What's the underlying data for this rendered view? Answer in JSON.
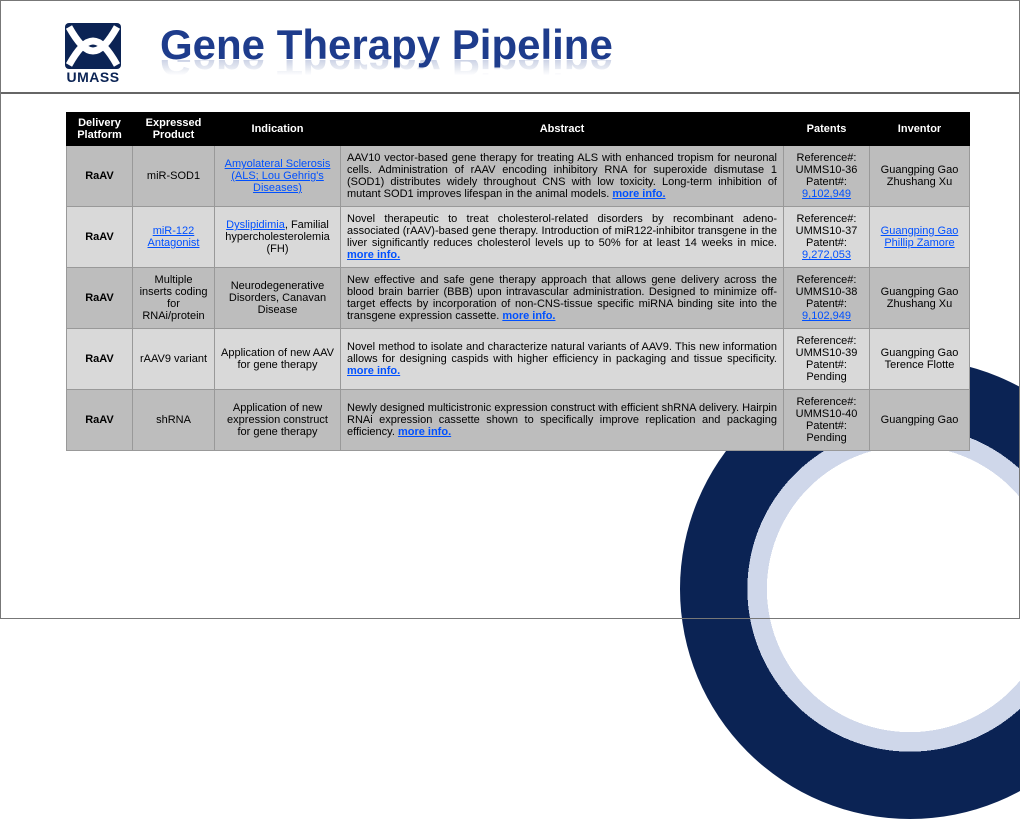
{
  "header": {
    "logo_text": "UMASS",
    "title": "Gene Therapy Pipeline"
  },
  "columns": [
    "Delivery Platform",
    "Expressed Product",
    "Indication",
    "Abstract",
    "Patents",
    "Inventor"
  ],
  "rows": [
    {
      "platform": "RaAV",
      "product": {
        "text": "miR-SOD1",
        "link": false
      },
      "indication": [
        {
          "t": "Amyolateral Sclerosis (ALS; Lou Gehrig's Diseases)",
          "link": true
        }
      ],
      "abstract_parts": [
        {
          "t": "AAV10 vector-based gene therapy for treating ALS with enhanced tropism for neuronal cells. Administration of rAAV encoding inhibitory RNA for superoxide dismutase 1 (SOD1) distributes widely throughout CNS with low toxicity. Long-term inhibition of mutant SOD1 improves lifespan in the animal models. "
        },
        {
          "t": "more info.",
          "more": true
        }
      ],
      "patents": [
        {
          "t": "Reference#: UMMS10-36"
        },
        {
          "t": "Patent#:"
        },
        {
          "t": "9,102,949",
          "link": true
        }
      ],
      "inventor": [
        {
          "t": "Guangping Gao"
        },
        {
          "t": "Zhushang Xu"
        }
      ]
    },
    {
      "platform": "RaAV",
      "product": {
        "text": "miR-122 Antagonist",
        "link": true
      },
      "indication": [
        {
          "t": "Dyslipidimia",
          "link": true
        },
        {
          "t": ", Familial hypercholesterolemia (FH)"
        }
      ],
      "abstract_parts": [
        {
          "t": "Novel therapeutic to treat cholesterol-related disorders by recombinant adeno-associated (rAAV)-based gene therapy. Introduction of miR122-inhibitor transgene in the liver significantly reduces cholesterol levels up to 50% for at least 14 weeks in mice. "
        },
        {
          "t": "more info.",
          "more": true
        }
      ],
      "patents": [
        {
          "t": "Reference#: UMMS10-37"
        },
        {
          "t": "Patent#:"
        },
        {
          "t": "9,272,053",
          "link": true
        }
      ],
      "inventor": [
        {
          "t": "Guangping Gao",
          "link": true
        },
        {
          "t": "Phillip Zamore",
          "link": true
        }
      ]
    },
    {
      "platform": "RaAV",
      "product": {
        "text": "Multiple inserts coding for RNAi/protein",
        "link": false
      },
      "indication": [
        {
          "t": "Neurodegenerative Disorders, Canavan Disease"
        }
      ],
      "abstract_parts": [
        {
          "t": "New effective and safe gene therapy approach that allows gene delivery across the blood brain barrier (BBB) upon intravascular administration. Designed to minimize off-target effects by incorporation of non-CNS-tissue specific miRNA binding site into the transgene expression cassette. "
        },
        {
          "t": "more info.",
          "more": true
        }
      ],
      "patents": [
        {
          "t": "Reference#: UMMS10-38"
        },
        {
          "t": "Patent#:"
        },
        {
          "t": "9,102,949",
          "link": true
        }
      ],
      "inventor": [
        {
          "t": "Guangping Gao"
        },
        {
          "t": "Zhushang Xu"
        }
      ]
    },
    {
      "platform": "RaAV",
      "product": {
        "text": "rAAV9 variant",
        "link": false
      },
      "indication": [
        {
          "t": "Application of new AAV for gene therapy"
        }
      ],
      "abstract_parts": [
        {
          "t": "Novel method to isolate and characterize natural variants of AAV9. This new information allows for designing caspids with higher efficiency in packaging and tissue specificity. "
        },
        {
          "t": "more info.",
          "more": true
        }
      ],
      "patents": [
        {
          "t": "Reference#: UMMS10-39"
        },
        {
          "t": "Patent#: Pending"
        }
      ],
      "inventor": [
        {
          "t": "Guangping Gao"
        },
        {
          "t": "Terence Flotte"
        }
      ]
    },
    {
      "platform": "RaAV",
      "product": {
        "text": "shRNA",
        "link": false
      },
      "indication": [
        {
          "t": "Application of new expression construct for gene therapy"
        }
      ],
      "abstract_parts": [
        {
          "t": "Newly designed multicistronic expression construct with efficient shRNA delivery. Hairpin RNAi expression cassette shown to specifically improve replication and packaging efficiency. "
        },
        {
          "t": "more info.",
          "more": true
        }
      ],
      "patents": [
        {
          "t": "Reference#: UMMS10-40"
        },
        {
          "t": "Patent#: Pending"
        }
      ],
      "inventor": [
        {
          "t": "Guangping Gao"
        }
      ]
    }
  ]
}
